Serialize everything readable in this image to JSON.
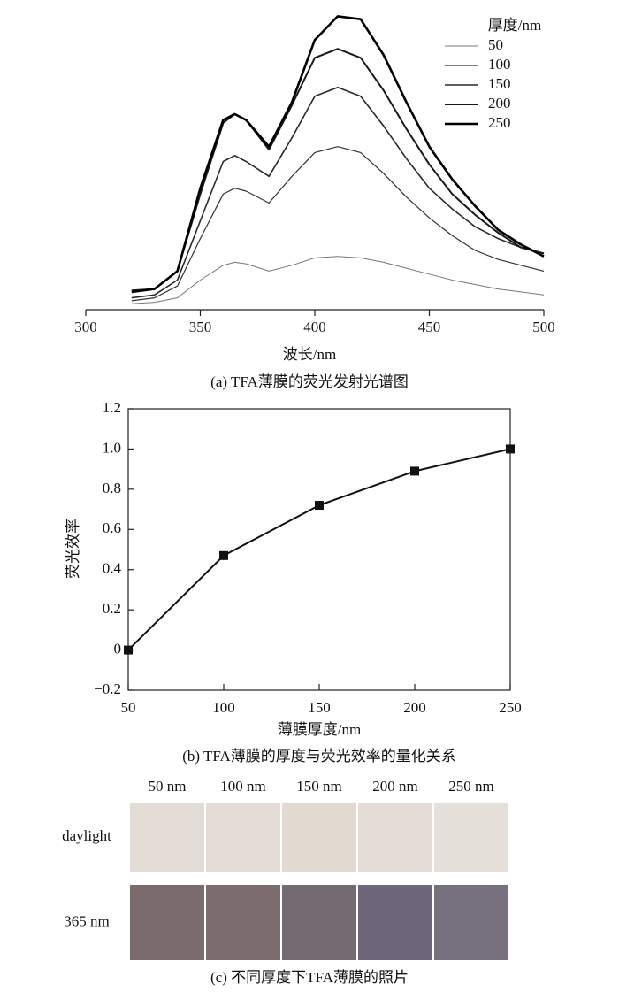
{
  "chart_data": [
    {
      "type": "line",
      "caption": "(a) TFA薄膜的荧光发射光谱图",
      "xlabel": "波长/nm",
      "legend_title": "厚度/nm",
      "legend": "upper right",
      "x": [
        320,
        330,
        340,
        350,
        360,
        365,
        370,
        380,
        390,
        400,
        410,
        420,
        430,
        440,
        450,
        460,
        470,
        480,
        490,
        500
      ],
      "xlim": [
        300,
        500
      ],
      "xticks": [
        300,
        350,
        400,
        450,
        500
      ],
      "ylim": [
        0,
        1
      ],
      "series": [
        {
          "name": "50",
          "color": "#777777",
          "width": 1,
          "values": [
            0.02,
            0.025,
            0.04,
            0.1,
            0.15,
            0.16,
            0.155,
            0.13,
            0.15,
            0.175,
            0.18,
            0.175,
            0.16,
            0.14,
            0.12,
            0.1,
            0.085,
            0.07,
            0.06,
            0.05
          ]
        },
        {
          "name": "100",
          "color": "#333333",
          "width": 1.2,
          "values": [
            0.03,
            0.04,
            0.08,
            0.24,
            0.39,
            0.41,
            0.4,
            0.36,
            0.45,
            0.53,
            0.55,
            0.53,
            0.46,
            0.38,
            0.31,
            0.25,
            0.2,
            0.17,
            0.15,
            0.13
          ]
        },
        {
          "name": "150",
          "color": "#2a2a2a",
          "width": 1.6,
          "values": [
            0.04,
            0.05,
            0.1,
            0.3,
            0.5,
            0.52,
            0.5,
            0.45,
            0.58,
            0.72,
            0.75,
            0.72,
            0.62,
            0.51,
            0.41,
            0.34,
            0.28,
            0.24,
            0.21,
            0.19
          ]
        },
        {
          "name": "200",
          "color": "#1a1a1a",
          "width": 2,
          "values": [
            0.065,
            0.07,
            0.13,
            0.39,
            0.63,
            0.66,
            0.64,
            0.54,
            0.69,
            0.85,
            0.88,
            0.85,
            0.74,
            0.61,
            0.49,
            0.39,
            0.32,
            0.26,
            0.21,
            0.19
          ]
        },
        {
          "name": "250",
          "color": "#000000",
          "width": 2.6,
          "values": [
            0.06,
            0.07,
            0.13,
            0.41,
            0.64,
            0.66,
            0.64,
            0.55,
            0.7,
            0.91,
            0.99,
            0.98,
            0.86,
            0.7,
            0.55,
            0.44,
            0.35,
            0.27,
            0.22,
            0.18
          ]
        }
      ]
    },
    {
      "type": "line",
      "caption": "(b) TFA薄膜的厚度与荧光效率的量化关系",
      "xlabel": "薄膜厚度/nm",
      "ylabel": "荧光效率",
      "x": [
        50,
        100,
        150,
        200,
        250
      ],
      "xlim": [
        50,
        250
      ],
      "xticks": [
        50,
        100,
        150,
        200,
        250
      ],
      "ylim": [
        -0.2,
        1.2
      ],
      "yticks": [
        {
          "value": -0.2,
          "label": "−0.2"
        },
        0,
        0.2,
        0.4,
        0.6,
        0.8,
        {
          "value": 1.0,
          "label": "1.0"
        },
        1.2
      ],
      "series": [
        {
          "color": "#111111",
          "width": 2,
          "marker": "square",
          "values": [
            0,
            0.47,
            0.72,
            0.89,
            1.0
          ]
        }
      ]
    }
  ],
  "photos": {
    "caption": "(c) 不同厚度下TFA薄膜的照片",
    "columns": [
      "50 nm",
      "100 nm",
      "150 nm",
      "200 nm",
      "250 nm"
    ],
    "rows": [
      {
        "label": "daylight",
        "colors": [
          "#e3dcd5",
          "#e4ddd6",
          "#e2d9d1",
          "#e4ddd6",
          "#e6e0da"
        ]
      },
      {
        "label": "365 nm",
        "colors": [
          "#7a6b6e",
          "#7a6c6f",
          "#756a71",
          "#6d667a",
          "#77707e"
        ]
      }
    ]
  }
}
